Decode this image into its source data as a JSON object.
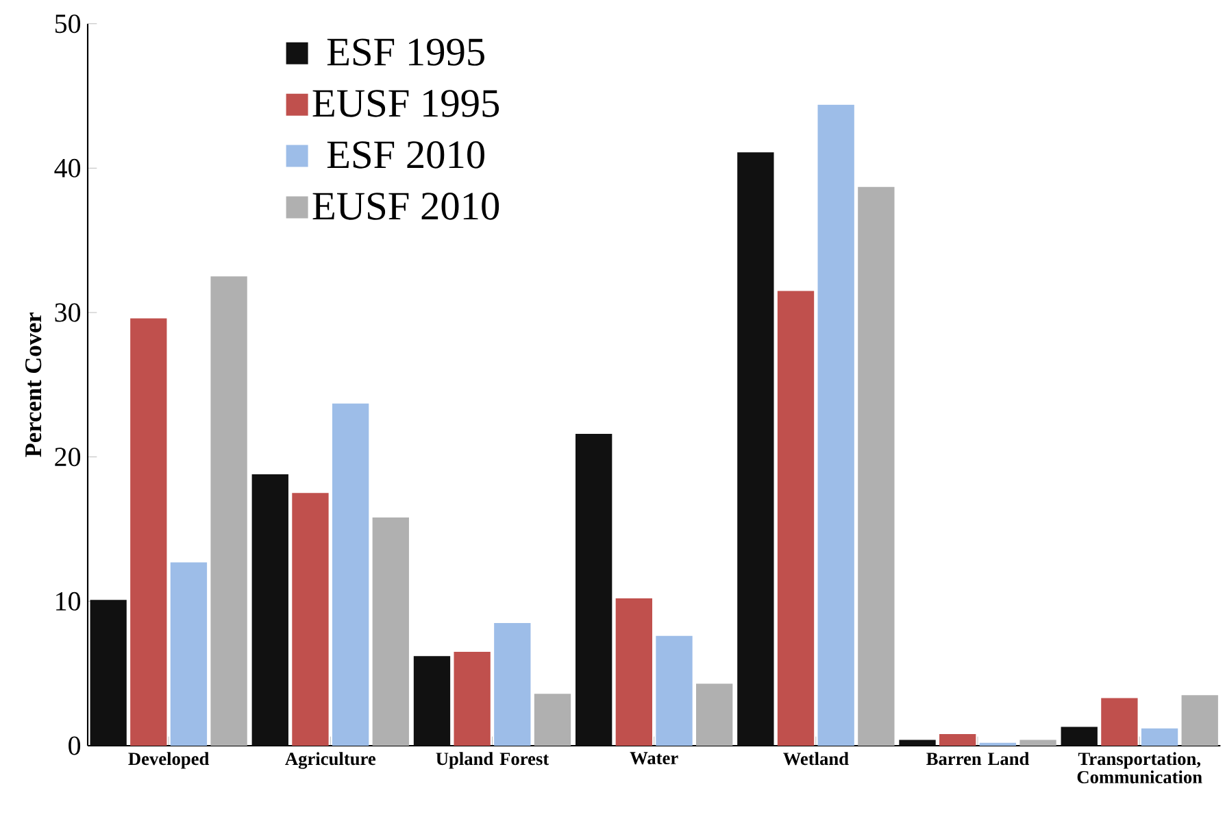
{
  "chart_data": {
    "type": "bar",
    "ylabel": "Percent Cover",
    "categories": [
      "Developed",
      "Agriculture",
      "Upland Forest",
      "Water",
      "Wetland",
      "Barren Land",
      "Transportation, Communication"
    ],
    "series": [
      {
        "name": "ESF 1995",
        "color": "#111111",
        "values": [
          10.1,
          18.8,
          6.2,
          21.6,
          41.1,
          0.4,
          1.3
        ]
      },
      {
        "name": "EUSF 1995",
        "color": "#c0504d",
        "values": [
          29.6,
          17.5,
          6.5,
          10.2,
          31.5,
          0.8,
          3.3
        ]
      },
      {
        "name": "ESF 2010",
        "color": "#9dbde8",
        "values": [
          12.7,
          23.7,
          8.5,
          7.6,
          44.4,
          0.2,
          1.2
        ]
      },
      {
        "name": "EUSF 2010",
        "color": "#b0b0b0",
        "values": [
          32.5,
          15.8,
          3.6,
          4.3,
          38.7,
          0.4,
          3.5
        ]
      }
    ],
    "ylim": [
      0,
      50
    ],
    "yticks": [
      0,
      10,
      20,
      30,
      40,
      50
    ],
    "legend": "top left",
    "grid": false
  }
}
